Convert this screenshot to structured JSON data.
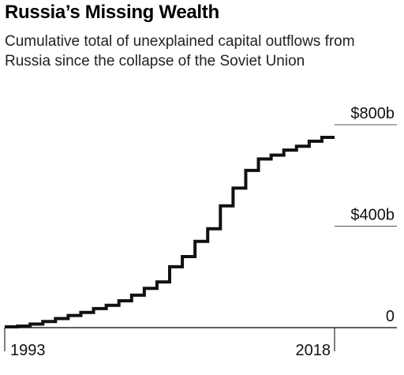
{
  "header": {
    "title": "Russia’s Missing Wealth",
    "subtitle": "Cumulative total of unexplained capital outflows from Russia since the collapse of the Soviet Union"
  },
  "chart_data": {
    "type": "line",
    "step": true,
    "title": "Russia’s Missing Wealth",
    "subtitle": "Cumulative total of unexplained capital outflows from Russia since the collapse of the Soviet Union",
    "x": [
      1993,
      1994,
      1995,
      1996,
      1997,
      1998,
      1999,
      2000,
      2001,
      2002,
      2003,
      2004,
      2005,
      2006,
      2007,
      2008,
      2009,
      2010,
      2011,
      2012,
      2013,
      2014,
      2015,
      2016,
      2017,
      2018
    ],
    "values": [
      3,
      6,
      14,
      24,
      36,
      48,
      60,
      75,
      88,
      106,
      128,
      155,
      180,
      240,
      280,
      340,
      390,
      480,
      550,
      620,
      665,
      680,
      700,
      715,
      735,
      750
    ],
    "xlim": [
      1993,
      2018
    ],
    "ylim": [
      0,
      800
    ],
    "x_tick_labels": [
      "1993",
      "2018"
    ],
    "y_tick_labels": [
      "0",
      "$400b",
      "$800b"
    ],
    "y_ticks": [
      0,
      400,
      800
    ],
    "line_color": "#111111",
    "grid": true
  }
}
